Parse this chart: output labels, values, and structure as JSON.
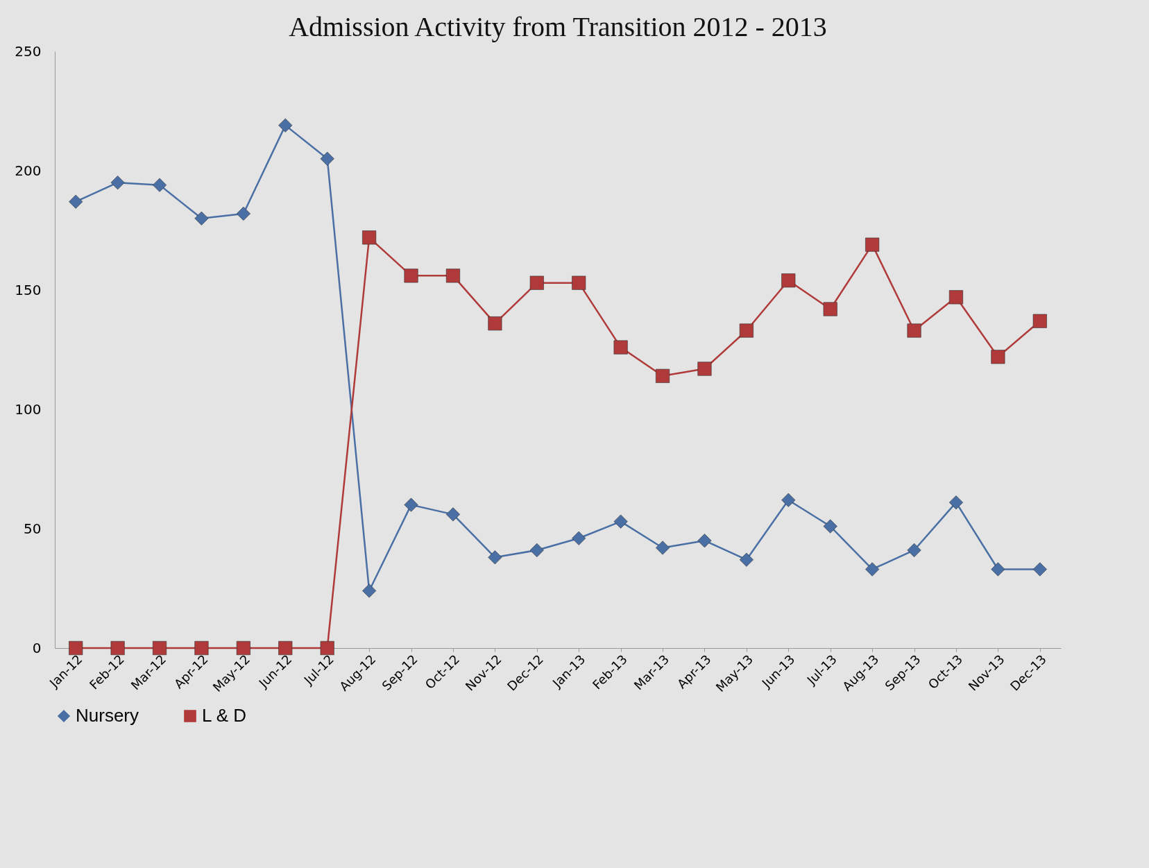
{
  "chart_data": {
    "type": "line",
    "title": "Admission Activity  from  Transition   2012 - 2013",
    "categories": [
      "Jan-12",
      "Feb-12",
      "Mar-12",
      "Apr-12",
      "May-12",
      "Jun-12",
      "Jul-12",
      "Aug-12",
      "Sep-12",
      "Oct-12",
      "Nov-12",
      "Dec-12",
      "Jan-13",
      "Feb-13",
      "Mar-13",
      "Apr-13",
      "May-13",
      "Jun-13",
      "Jul-13",
      "Aug-13",
      "Sep-13",
      "Oct-13",
      "Nov-13",
      "Dec-13"
    ],
    "series": [
      {
        "name": "Nursery",
        "color": "#4a6fa5",
        "marker": "diamond",
        "values": [
          187,
          195,
          194,
          180,
          182,
          219,
          205,
          24,
          60,
          56,
          38,
          41,
          46,
          53,
          42,
          45,
          37,
          62,
          51,
          33,
          41,
          61,
          33,
          33
        ]
      },
      {
        "name": "L & D",
        "color": "#b03a3a",
        "marker": "square",
        "values": [
          0,
          0,
          0,
          0,
          0,
          0,
          0,
          172,
          156,
          156,
          136,
          153,
          153,
          126,
          114,
          117,
          133,
          154,
          142,
          169,
          133,
          147,
          122,
          137
        ]
      }
    ],
    "ylim": [
      0,
      250
    ],
    "yticks": [
      0,
      50,
      100,
      150,
      200,
      250
    ],
    "grid": false,
    "legend": "bottom",
    "line_style": "solid"
  }
}
